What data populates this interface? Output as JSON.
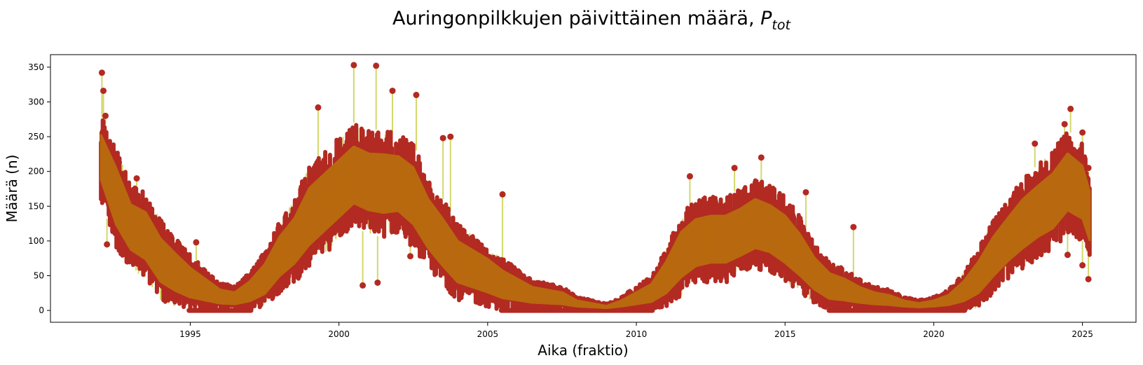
{
  "chart_data": {
    "type": "line",
    "title": "Auringonpilkkujen päivittäinen määrä, ",
    "title_symbol": "P",
    "title_subscript": "tot",
    "xlabel": "Aika (fraktio)",
    "ylabel": "Määrä (n)",
    "xlim": [
      1990.3,
      2026.8
    ],
    "ylim": [
      -17,
      368
    ],
    "xticks": [
      1995,
      2000,
      2005,
      2010,
      2015,
      2020,
      2025
    ],
    "yticks": [
      0,
      50,
      100,
      150,
      200,
      250,
      300,
      350
    ],
    "grid": false,
    "legend": "none",
    "colors": {
      "line": "#d4d86a",
      "marker": "#b22a22",
      "fill": "#b8690f"
    },
    "series": [
      {
        "x": [
          1992.0,
          1992.5,
          1993.0,
          1993.5,
          1994.0,
          1994.5,
          1995.0,
          1995.5,
          1996.0,
          1996.5,
          1997.0,
          1997.5,
          1998.0,
          1998.5,
          1999.0,
          1999.5,
          2000.0,
          2000.5,
          2001.0,
          2001.5,
          2002.0,
          2002.5,
          2003.0,
          2003.5,
          2004.0,
          2004.5,
          2005.0,
          2005.5,
          2006.0,
          2006.5,
          2007.0,
          2007.5,
          2008.0,
          2008.5,
          2009.0,
          2009.5,
          2010.0,
          2010.5,
          2011.0,
          2011.5,
          2012.0,
          2012.5,
          2013.0,
          2013.5,
          2014.0,
          2014.5,
          2015.0,
          2015.5,
          2016.0,
          2016.5,
          2017.0,
          2017.5,
          2018.0,
          2018.5,
          2019.0,
          2019.5,
          2020.0,
          2020.5,
          2021.0,
          2021.5,
          2022.0,
          2022.5,
          2023.0,
          2023.5,
          2024.0,
          2024.5,
          2025.0,
          2025.25
        ],
        "y": [
          215,
          160,
          120,
          110,
          75,
          55,
          35,
          25,
          12,
          10,
          22,
          40,
          75,
          95,
          120,
          150,
          165,
          185,
          175,
          170,
          170,
          155,
          125,
          95,
          65,
          55,
          45,
          35,
          25,
          15,
          12,
          8,
          5,
          3,
          2,
          5,
          15,
          20,
          45,
          75,
          90,
          95,
          95,
          110,
          125,
          115,
          95,
          75,
          50,
          30,
          22,
          15,
          10,
          8,
          4,
          2,
          3,
          8,
          20,
          40,
          70,
          95,
          120,
          130,
          145,
          175,
          160,
          130
        ],
        "band_low": [
          160,
          90,
          60,
          45,
          15,
          5,
          0,
          0,
          0,
          0,
          0,
          5,
          25,
          40,
          60,
          80,
          100,
          120,
          110,
          105,
          110,
          90,
          60,
          35,
          15,
          10,
          5,
          0,
          0,
          0,
          0,
          0,
          0,
          0,
          0,
          0,
          0,
          0,
          5,
          20,
          35,
          40,
          40,
          50,
          60,
          55,
          40,
          25,
          10,
          0,
          0,
          0,
          0,
          0,
          0,
          0,
          0,
          0,
          0,
          5,
          25,
          45,
          60,
          75,
          85,
          110,
          100,
          70
        ],
        "band_high": [
          280,
          240,
          180,
          170,
          130,
          105,
          80,
          60,
          40,
          35,
          55,
          85,
          130,
          160,
          210,
          230,
          250,
          270,
          260,
          260,
          255,
          240,
          190,
          160,
          125,
          110,
          95,
          75,
          60,
          45,
          40,
          35,
          20,
          15,
          10,
          20,
          35,
          50,
          90,
          140,
          160,
          165,
          165,
          175,
          190,
          180,
          165,
          135,
          95,
          70,
          60,
          45,
          35,
          30,
          20,
          15,
          20,
          30,
          55,
          90,
          130,
          160,
          190,
          210,
          230,
          260,
          240,
          200
        ],
        "peaks": [
          [
            1992.03,
            342
          ],
          [
            1992.08,
            316
          ],
          [
            1992.15,
            280
          ],
          [
            1992.6,
            213
          ],
          [
            1993.2,
            190
          ],
          [
            1994.0,
            128
          ],
          [
            1995.2,
            98
          ],
          [
            1999.3,
            292
          ],
          [
            2000.5,
            353
          ],
          [
            2001.25,
            352
          ],
          [
            2001.8,
            316
          ],
          [
            2002.6,
            310
          ],
          [
            2003.5,
            248
          ],
          [
            2003.75,
            250
          ],
          [
            2005.5,
            167
          ],
          [
            2011.8,
            193
          ],
          [
            2013.3,
            205
          ],
          [
            2014.2,
            220
          ],
          [
            2015.7,
            170
          ],
          [
            2017.3,
            120
          ],
          [
            2023.4,
            240
          ],
          [
            2024.4,
            268
          ],
          [
            2024.6,
            290
          ],
          [
            2025.0,
            256
          ],
          [
            2025.2,
            205
          ]
        ],
        "dips": [
          [
            1992.2,
            95
          ],
          [
            2000.8,
            36
          ],
          [
            2001.3,
            40
          ],
          [
            2002.4,
            78
          ],
          [
            2024.5,
            80
          ],
          [
            2025.0,
            65
          ],
          [
            2025.2,
            45
          ]
        ]
      }
    ]
  }
}
